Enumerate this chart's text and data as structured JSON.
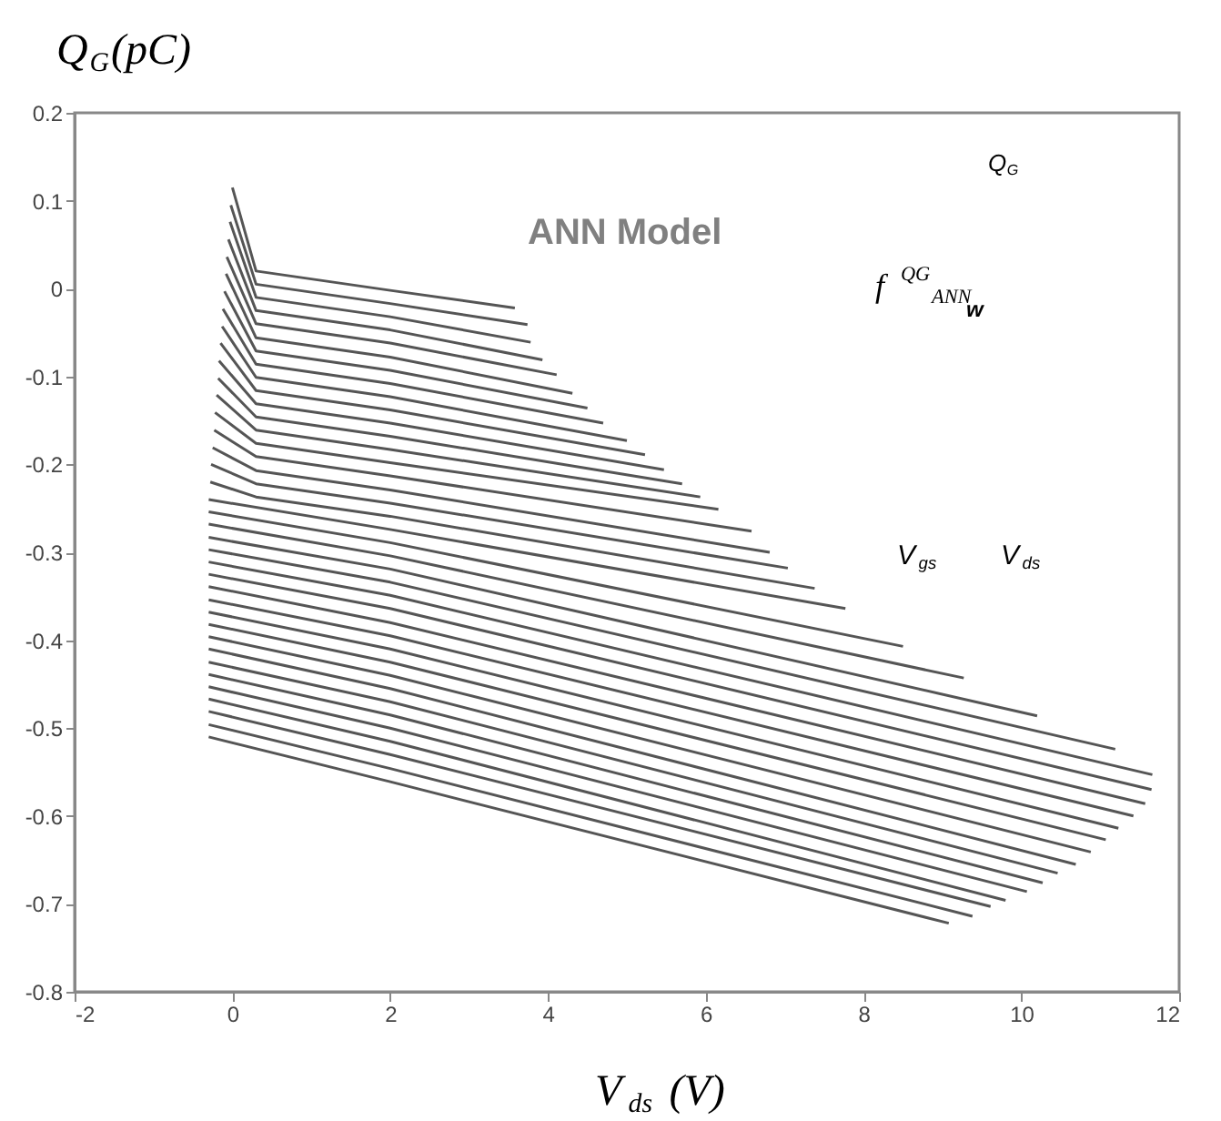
{
  "chart_data": {
    "type": "line",
    "xlabel": "V$_{ds}$(V)",
    "ylabel": "Q$_{G}$(pC)",
    "annotations": [
      "ANN Model",
      "Q$_{G}$",
      "f$^{QG}$$_{ANN}$",
      "w",
      "V$_{gs}$",
      "V$_{ds}$"
    ],
    "xlim": [
      -2,
      12
    ],
    "xticks": [
      -2,
      0,
      2,
      4,
      6,
      8,
      10,
      12
    ],
    "ylim": [
      -0.8,
      0.2
    ],
    "yticks": [
      -0.8,
      -0.7,
      -0.6,
      -0.5,
      -0.4,
      -0.3,
      -0.2,
      -0.1,
      0,
      0.1,
      0.2
    ],
    "grid": false,
    "legend": false,
    "marker": "none",
    "line_style": "solid",
    "series": [
      {
        "color": "#555555",
        "x": [
          0,
          0.3,
          2,
          3.58
        ],
        "values": [
          0.115,
          0.02,
          -0.002,
          -0.022
        ]
      },
      {
        "color": "#555555",
        "x": [
          -0.02,
          0.3,
          2,
          3.74
        ],
        "values": [
          0.095,
          0.005,
          -0.017,
          -0.041
        ]
      },
      {
        "color": "#555555",
        "x": [
          -0.03,
          0.3,
          2,
          3.78
        ],
        "values": [
          0.076,
          -0.01,
          -0.032,
          -0.061
        ]
      },
      {
        "color": "#555555",
        "x": [
          -0.05,
          0.3,
          2,
          3.93
        ],
        "values": [
          0.056,
          -0.025,
          -0.047,
          -0.081
        ]
      },
      {
        "color": "#555555",
        "x": [
          -0.07,
          0.3,
          2,
          4.11
        ],
        "values": [
          0.036,
          -0.04,
          -0.062,
          -0.098
        ]
      },
      {
        "color": "#555555",
        "x": [
          -0.08,
          0.3,
          2,
          4.31
        ],
        "values": [
          0.017,
          -0.056,
          -0.078,
          -0.119
        ]
      },
      {
        "color": "#555555",
        "x": [
          -0.1,
          0.3,
          2,
          4.5
        ],
        "values": [
          -0.003,
          -0.071,
          -0.093,
          -0.136
        ]
      },
      {
        "color": "#555555",
        "x": [
          -0.12,
          0.3,
          2,
          4.7
        ],
        "values": [
          -0.023,
          -0.086,
          -0.108,
          -0.153
        ]
      },
      {
        "color": "#555555",
        "x": [
          -0.13,
          0.3,
          2,
          5.0
        ],
        "values": [
          -0.043,
          -0.101,
          -0.123,
          -0.173
        ]
      },
      {
        "color": "#555555",
        "x": [
          -0.15,
          0.3,
          2,
          5.23
        ],
        "values": [
          -0.062,
          -0.116,
          -0.138,
          -0.189
        ]
      },
      {
        "color": "#555555",
        "x": [
          -0.17,
          0.3,
          2,
          5.47
        ],
        "values": [
          -0.082,
          -0.131,
          -0.153,
          -0.206
        ]
      },
      {
        "color": "#555555",
        "x": [
          -0.18,
          0.3,
          2,
          5.7
        ],
        "values": [
          -0.102,
          -0.146,
          -0.168,
          -0.222
        ]
      },
      {
        "color": "#555555",
        "x": [
          -0.2,
          0.3,
          2,
          5.93
        ],
        "values": [
          -0.121,
          -0.161,
          -0.183,
          -0.237
        ]
      },
      {
        "color": "#555555",
        "x": [
          -0.22,
          0.3,
          2,
          6.16
        ],
        "values": [
          -0.141,
          -0.176,
          -0.198,
          -0.251
        ]
      },
      {
        "color": "#555555",
        "x": [
          -0.23,
          0.3,
          2,
          6.58
        ],
        "values": [
          -0.161,
          -0.191,
          -0.213,
          -0.276
        ]
      },
      {
        "color": "#555555",
        "x": [
          -0.25,
          0.3,
          2,
          6.81
        ],
        "values": [
          -0.181,
          -0.207,
          -0.229,
          -0.3
        ]
      },
      {
        "color": "#555555",
        "x": [
          -0.27,
          0.3,
          2,
          7.04
        ],
        "values": [
          -0.2,
          -0.222,
          -0.244,
          -0.318
        ]
      },
      {
        "color": "#555555",
        "x": [
          -0.28,
          0.3,
          2,
          7.38
        ],
        "values": [
          -0.22,
          -0.237,
          -0.259,
          -0.341
        ]
      },
      {
        "color": "#555555",
        "x": [
          -0.3,
          2,
          7.77
        ],
        "values": [
          -0.24,
          -0.274,
          -0.364
        ]
      },
      {
        "color": "#555555",
        "x": [
          -0.3,
          2,
          8.5
        ],
        "values": [
          -0.254,
          -0.289,
          -0.407
        ]
      },
      {
        "color": "#555555",
        "x": [
          -0.3,
          2,
          9.27
        ],
        "values": [
          -0.268,
          -0.304,
          -0.443
        ]
      },
      {
        "color": "#555555",
        "x": [
          -0.3,
          2,
          10.2
        ],
        "values": [
          -0.283,
          -0.319,
          -0.486
        ]
      },
      {
        "color": "#555555",
        "x": [
          -0.3,
          2,
          11.19
        ],
        "values": [
          -0.297,
          -0.334,
          -0.524
        ]
      },
      {
        "color": "#555555",
        "x": [
          -0.3,
          2,
          11.66
        ],
        "values": [
          -0.311,
          -0.349,
          -0.553
        ]
      },
      {
        "color": "#555555",
        "x": [
          -0.3,
          2,
          11.65
        ],
        "values": [
          -0.325,
          -0.364,
          -0.57
        ]
      },
      {
        "color": "#555555",
        "x": [
          -0.3,
          2,
          11.57
        ],
        "values": [
          -0.339,
          -0.38,
          -0.586
        ]
      },
      {
        "color": "#555555",
        "x": [
          -0.3,
          2,
          11.42
        ],
        "values": [
          -0.354,
          -0.395,
          -0.6
        ]
      },
      {
        "color": "#555555",
        "x": [
          -0.3,
          2,
          11.23
        ],
        "values": [
          -0.368,
          -0.41,
          -0.614
        ]
      },
      {
        "color": "#555555",
        "x": [
          -0.3,
          2,
          11.07
        ],
        "values": [
          -0.382,
          -0.425,
          -0.627
        ]
      },
      {
        "color": "#555555",
        "x": [
          -0.3,
          2,
          10.88
        ],
        "values": [
          -0.396,
          -0.44,
          -0.641
        ]
      },
      {
        "color": "#555555",
        "x": [
          -0.3,
          2,
          10.69
        ],
        "values": [
          -0.41,
          -0.455,
          -0.655
        ]
      },
      {
        "color": "#555555",
        "x": [
          -0.3,
          2,
          10.46
        ],
        "values": [
          -0.425,
          -0.47,
          -0.665
        ]
      },
      {
        "color": "#555555",
        "x": [
          -0.3,
          2,
          10.27
        ],
        "values": [
          -0.439,
          -0.485,
          -0.676
        ]
      },
      {
        "color": "#555555",
        "x": [
          -0.3,
          2,
          10.07
        ],
        "values": [
          -0.453,
          -0.5,
          -0.686
        ]
      },
      {
        "color": "#555555",
        "x": [
          -0.3,
          2,
          9.8
        ],
        "values": [
          -0.467,
          -0.515,
          -0.696
        ]
      },
      {
        "color": "#555555",
        "x": [
          -0.3,
          2,
          9.61
        ],
        "values": [
          -0.481,
          -0.53,
          -0.703
        ]
      },
      {
        "color": "#555555",
        "x": [
          -0.3,
          2,
          9.38
        ],
        "values": [
          -0.496,
          -0.546,
          -0.714
        ]
      },
      {
        "color": "#555555",
        "x": [
          -0.3,
          2,
          9.08
        ],
        "values": [
          -0.51,
          -0.561,
          -0.722
        ]
      }
    ]
  }
}
